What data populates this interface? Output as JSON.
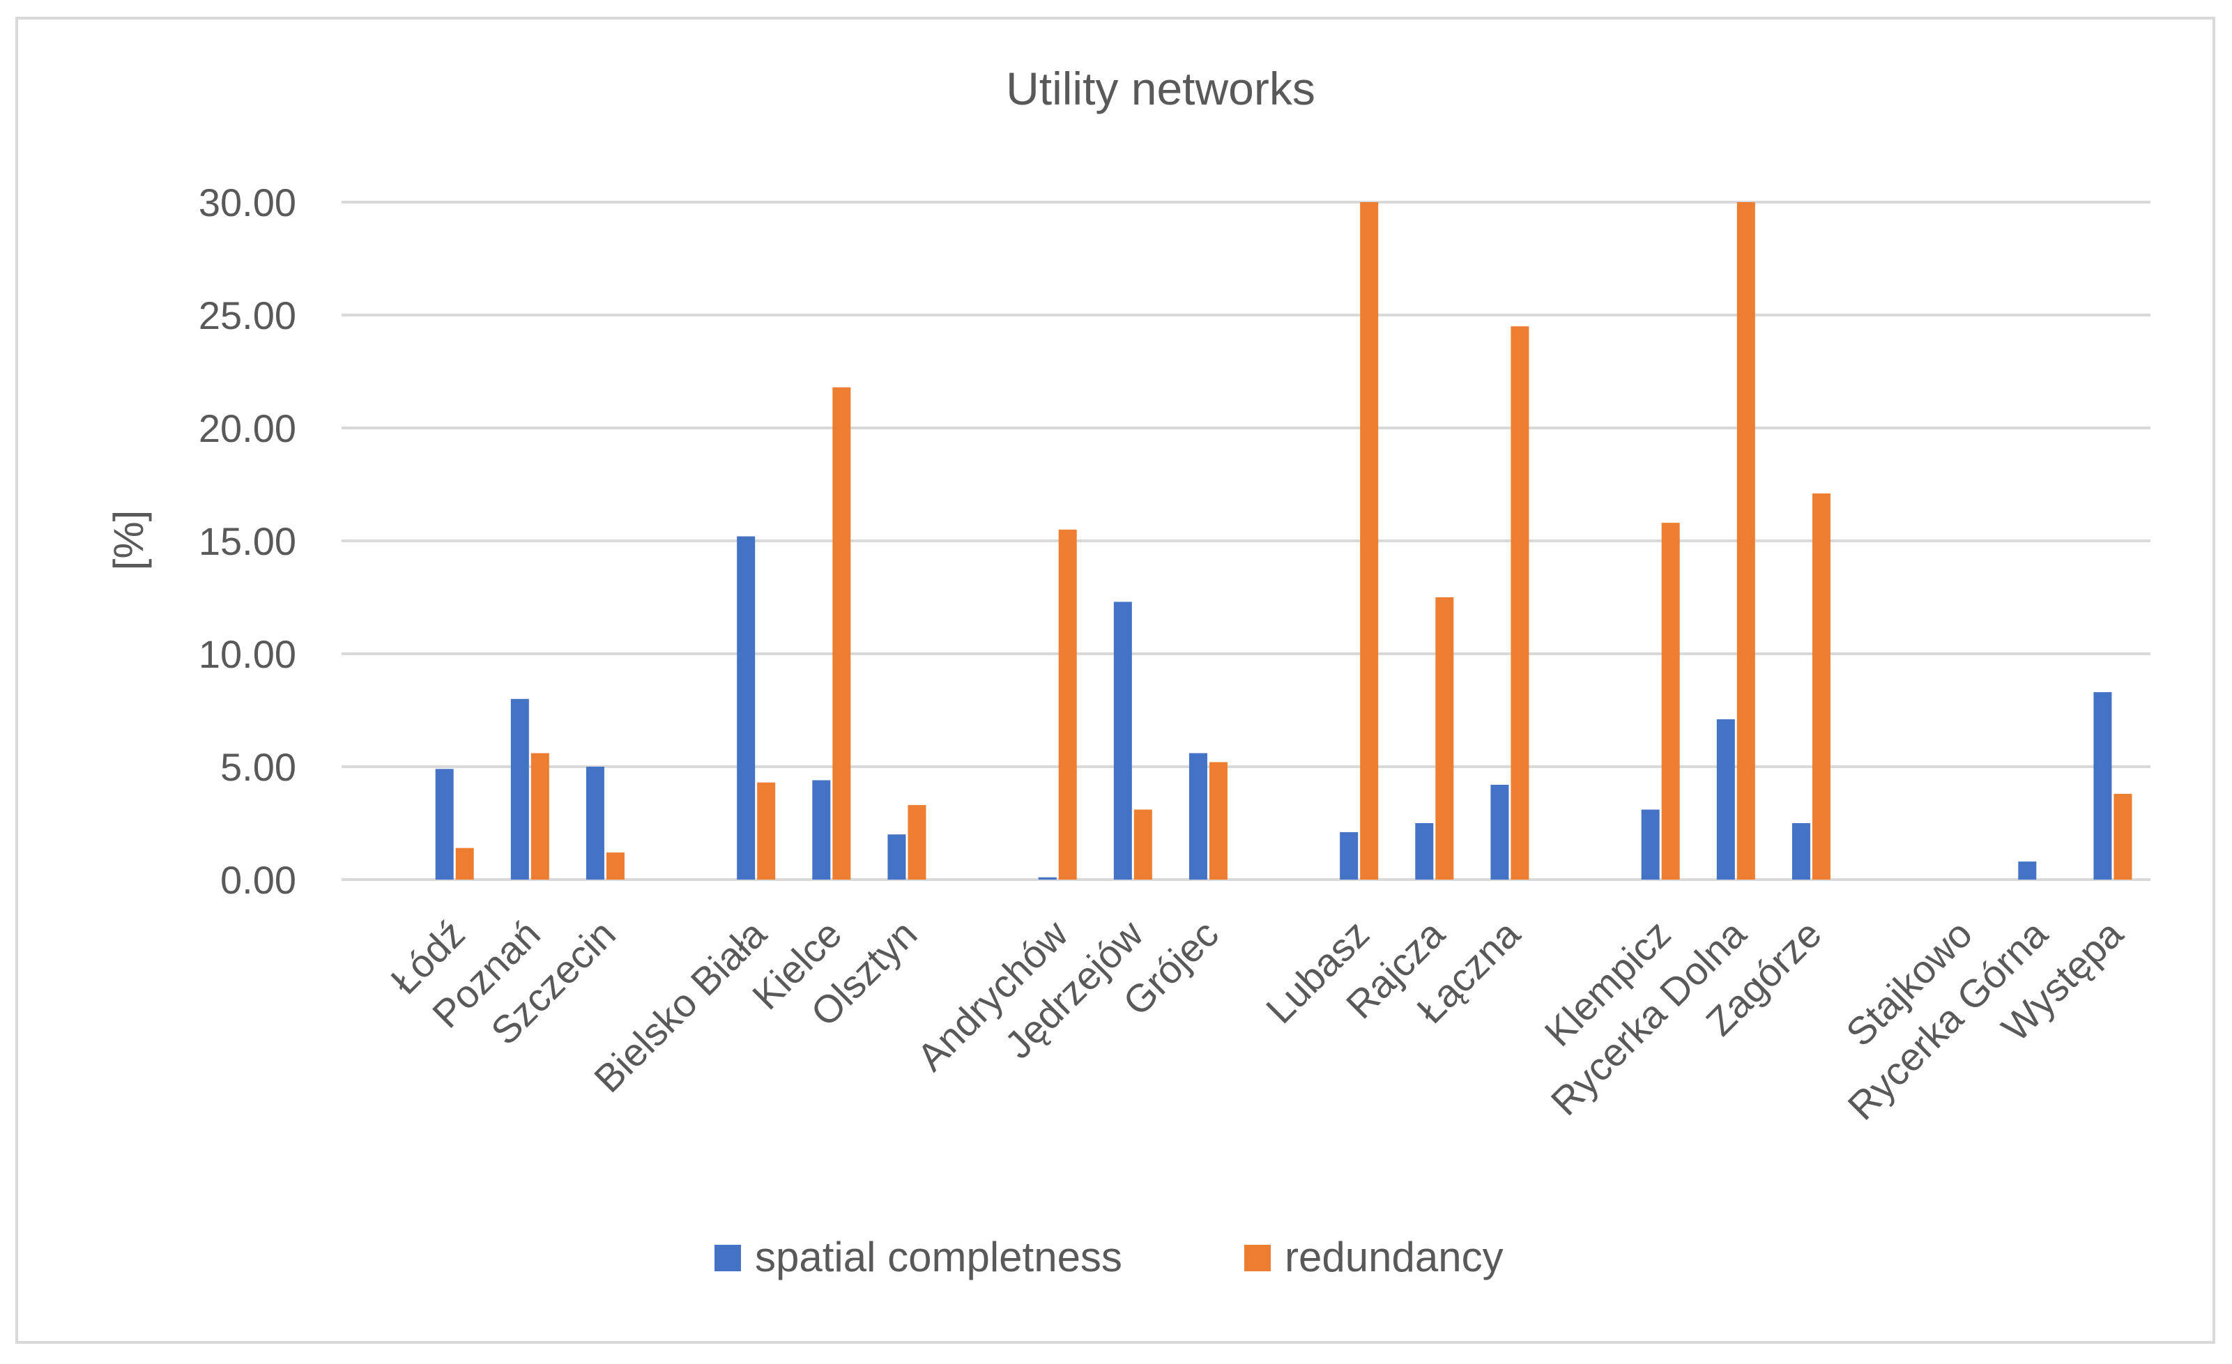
{
  "chart_data": {
    "type": "bar",
    "title": "Utility networks",
    "xlabel": "",
    "ylabel": "[%]",
    "ylim": [
      0,
      30
    ],
    "yticks": [
      "0.00",
      "5.00",
      "10.00",
      "15.00",
      "20.00",
      "25.00",
      "30.00"
    ],
    "grid": true,
    "legend_position": "bottom",
    "categories": [
      "",
      "Łódź",
      "Poznań",
      "Szczecin",
      "",
      "Bielsko Biała",
      "Kielce",
      "Olsztyn",
      "",
      "Andrychów",
      "Jędrzejów",
      "Grójec",
      "",
      "Lubasz",
      "Rajcza",
      "Łączna",
      "",
      "Klempicz",
      "Rycerka Dolna",
      "Zagórze",
      "",
      "Stajkowo",
      "Rycerka Górna",
      "Występa"
    ],
    "series": [
      {
        "name": "spatial completness",
        "color": "#4472c4",
        "values": [
          null,
          4.9,
          8.0,
          5.0,
          null,
          15.2,
          4.4,
          2.0,
          null,
          0.1,
          12.3,
          5.6,
          null,
          2.1,
          2.5,
          4.2,
          null,
          3.1,
          7.1,
          2.5,
          null,
          0,
          0.8,
          8.3
        ]
      },
      {
        "name": "redundancy",
        "color": "#ed7d31",
        "values": [
          null,
          1.4,
          5.6,
          1.2,
          null,
          4.3,
          21.8,
          3.3,
          null,
          15.5,
          3.1,
          5.2,
          null,
          30.0,
          12.5,
          24.5,
          null,
          15.8,
          30.0,
          17.1,
          null,
          0,
          0,
          3.8
        ]
      }
    ]
  }
}
